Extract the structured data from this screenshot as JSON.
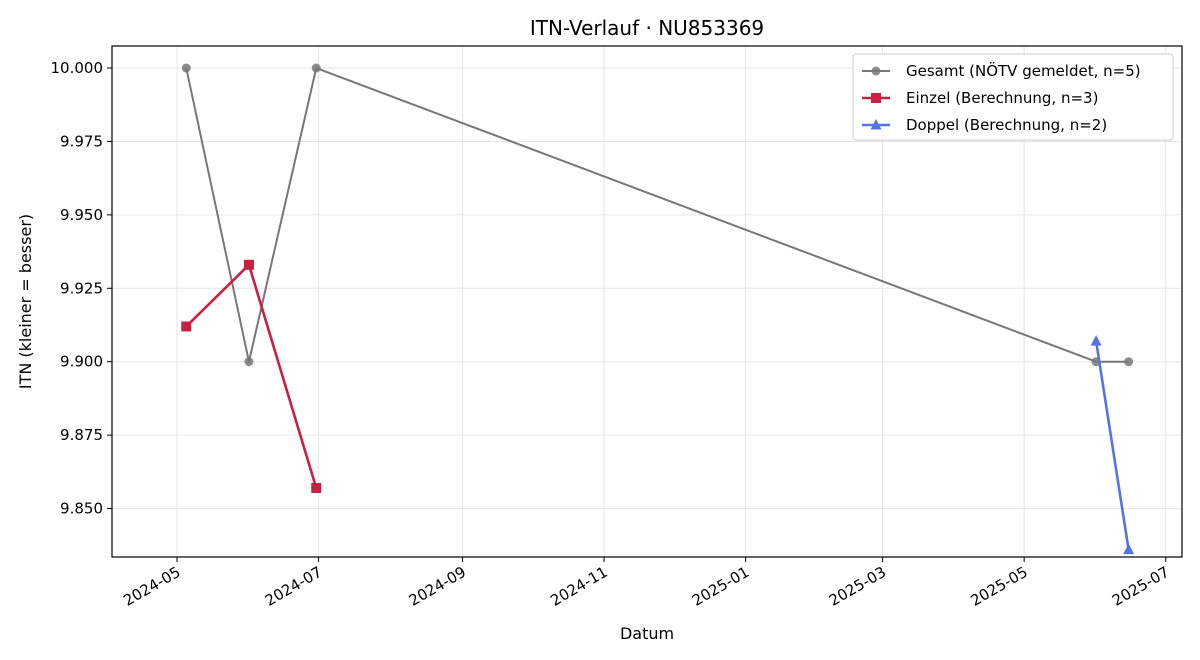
{
  "chart_data": {
    "type": "line",
    "title": "ITN-Verlauf · NU853369",
    "xlabel": "Datum",
    "ylabel": "ITN  (kleiner = besser)",
    "xlim": [
      "2024-04-03",
      "2025-07-08"
    ],
    "ylim": [
      9.8335,
      10.0075
    ],
    "x_ticks": [
      "2024-05",
      "2024-07",
      "2024-09",
      "2024-11",
      "2025-01",
      "2025-03",
      "2025-05",
      "2025-07"
    ],
    "y_ticks": [
      "10.000",
      "9.975",
      "9.950",
      "9.925",
      "9.900",
      "9.875",
      "9.850"
    ],
    "grid": true,
    "legend_position": "top-right",
    "series": [
      {
        "name": "Gesamt (NÖTV gemeldet, n=5)",
        "color": "#777777",
        "marker": "circle",
        "x": [
          "2024-05-05",
          "2024-06-01",
          "2024-06-30",
          "2025-06-01",
          "2025-06-15"
        ],
        "y": [
          10.0,
          9.9,
          10.0,
          9.9,
          9.9
        ]
      },
      {
        "name": "Einzel (Berechnung, n=3)",
        "color": "#c8203f",
        "marker": "square",
        "x": [
          "2024-05-05",
          "2024-06-01",
          "2024-06-30"
        ],
        "y": [
          9.912,
          9.933,
          9.857
        ]
      },
      {
        "name": "Doppel (Berechnung, n=2)",
        "color": "#5573e6",
        "marker": "triangle",
        "x": [
          "2025-06-01",
          "2025-06-15"
        ],
        "y": [
          9.907,
          9.836
        ]
      }
    ]
  }
}
